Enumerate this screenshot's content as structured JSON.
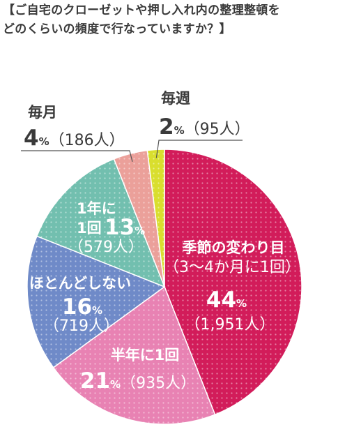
{
  "title_lines": [
    "【ご自宅のクローゼットや押し入れ内の整理整頓を",
    "どのくらいの頻度で行なっていますか？】"
  ],
  "chart_data": {
    "type": "pie",
    "title": "【ご自宅のクローゼットや押し入れ内の整理整頓をどのくらいの頻度で行なっていますか？】",
    "percent_symbol": "%",
    "slices": [
      {
        "label": "季節の変わり目",
        "sublabel": "（3〜4か月に1回）",
        "percent": 44,
        "percent_text": "44",
        "count_text": "（1,951人）",
        "count": 1951,
        "color": "#d21c5a"
      },
      {
        "label": "半年に1回",
        "sublabel": "",
        "percent": 21,
        "percent_text": "21",
        "count_text": "（935人）",
        "count": 935,
        "color": "#e882b3"
      },
      {
        "label": "ほとんどしない",
        "sublabel": "",
        "percent": 16,
        "percent_text": "16",
        "count_text": "（719人）",
        "count": 719,
        "color": "#6f8ac8"
      },
      {
        "label": "1年に1回",
        "label_lines": [
          "1年に",
          "1回"
        ],
        "sublabel": "",
        "percent": 13,
        "percent_text": "13",
        "count_text": "（579人）",
        "count": 579,
        "color": "#72bfaf"
      },
      {
        "label": "毎月",
        "sublabel": "",
        "percent": 4,
        "percent_text": "4",
        "count_text": "（186人）",
        "count": 186,
        "color": "#eba09a"
      },
      {
        "label": "毎週",
        "sublabel": "",
        "percent": 2,
        "percent_text": "2",
        "count_text": "（95人）",
        "count": 95,
        "color": "#d9de2e"
      }
    ]
  }
}
